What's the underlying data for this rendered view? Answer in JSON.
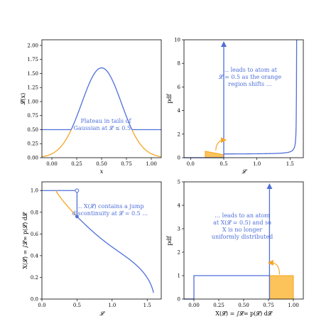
{
  "colors": {
    "blue": "#4f6fd8",
    "orange": "#f5a623",
    "fill": "#fbc35a",
    "axis": "#000000"
  },
  "chart_data": [
    {
      "type": "line",
      "panel": "top-left",
      "xlabel": "x",
      "ylabel": "ℒ(x)",
      "xlim": [
        -0.1,
        1.1
      ],
      "ylim": [
        0.0,
        2.1
      ],
      "xticks": [
        0.0,
        0.25,
        0.5,
        0.75,
        1.0
      ],
      "xtick_labels": [
        "0.00",
        "0.25",
        "0.50",
        "0.75",
        "1.00"
      ],
      "yticks": [
        0.0,
        0.25,
        0.5,
        0.75,
        1.0,
        1.25,
        1.5,
        1.75,
        2.0
      ],
      "ytick_labels": [
        "0.00",
        "0.25",
        "0.50",
        "0.75",
        "1.00",
        "1.25",
        "1.50",
        "1.75",
        "2.00"
      ],
      "gaussian": {
        "center": 0.5,
        "peak": 1.6,
        "width": 0.2,
        "plateau": 0.5
      },
      "annotation": "Plateau in tails of Gaussian at ℒ ≤ 0.5 …"
    },
    {
      "type": "line",
      "panel": "top-right",
      "xlabel": "ℒ",
      "ylabel": "pdf",
      "xlim": [
        -0.1,
        1.7
      ],
      "ylim": [
        0,
        10
      ],
      "xticks": [
        0.0,
        0.5,
        1.0,
        1.5
      ],
      "xtick_labels": [
        "0.0",
        "0.5",
        "1.0",
        "1.5"
      ],
      "yticks": [
        0,
        2,
        4,
        6,
        8,
        10
      ],
      "ytick_labels": [
        "0",
        "2",
        "4",
        "6",
        "8",
        "10"
      ],
      "atom_at": 0.5,
      "shaded_region": [
        0.22,
        0.5
      ],
      "pdf_floor": 0.3,
      "pdf_asymptote": 1.6,
      "annotation": "… leads to atom at ℒ = 0.5 as the orange region shifts …"
    },
    {
      "type": "line",
      "panel": "bottom-left",
      "xlabel": "ℒ",
      "ylabel": "X(ℒ) = ∫ℒ∞ p(ℒ) dℒ",
      "xlim": [
        0,
        1.7
      ],
      "ylim": [
        0.0,
        1.08
      ],
      "xticks": [
        0.0,
        0.5,
        1.0,
        1.5
      ],
      "xtick_labels": [
        "0.0",
        "0.5",
        "1.0",
        "1.5"
      ],
      "yticks": [
        0.0,
        0.2,
        0.4,
        0.6,
        0.8,
        1.0
      ],
      "ytick_labels": [
        "0.0",
        "0.2",
        "0.4",
        "0.6",
        "0.8",
        "1.0"
      ],
      "jump_at": 0.5,
      "jump_from": 1.0,
      "jump_to": 0.76,
      "annotation": "… X(ℒ) contains a jump discontinuity at ℒ = 0.5 …"
    },
    {
      "type": "bar",
      "panel": "bottom-right",
      "xlabel": "X(ℒ) = ∫ℒ∞ p(ℒ) dℒ",
      "ylabel": "pdf",
      "xlim": [
        -0.1,
        1.1
      ],
      "ylim": [
        0,
        5
      ],
      "xticks": [
        0.0,
        0.25,
        0.5,
        0.75,
        1.0
      ],
      "xtick_labels": [
        "0.00",
        "0.25",
        "0.50",
        "0.75",
        "1.00"
      ],
      "yticks": [
        0,
        1,
        2,
        3,
        4,
        5
      ],
      "ytick_labels": [
        "0",
        "1",
        "2",
        "3",
        "4",
        "5"
      ],
      "uniform_level": 1.0,
      "delta_at": 0.76,
      "shaded_region": [
        0.76,
        1.0
      ],
      "annotation": "… leads to an atom at X(ℒ = 0.5) and so X is no longer uniformly distributed"
    }
  ]
}
